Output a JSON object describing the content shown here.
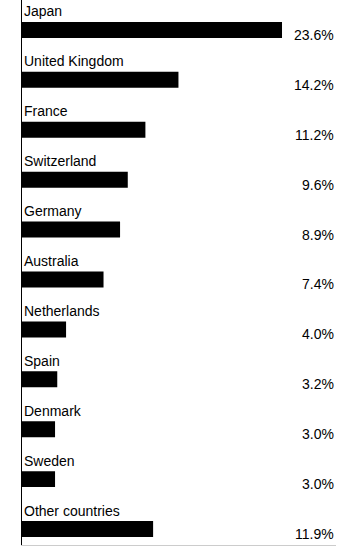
{
  "chart_data": {
    "type": "bar",
    "orientation": "horizontal",
    "categories": [
      "Japan",
      "United Kingdom",
      "France",
      "Switzerland",
      "Germany",
      "Australia",
      "Netherlands",
      "Spain",
      "Denmark",
      "Sweden",
      "Other countries"
    ],
    "values": [
      23.6,
      14.2,
      11.2,
      9.6,
      8.9,
      7.4,
      4.0,
      3.2,
      3.0,
      3.0,
      11.9
    ],
    "value_labels": [
      "23.6%",
      "14.2%",
      "11.2%",
      "9.6%",
      "8.9%",
      "7.4%",
      "4.0%",
      "3.2%",
      "3.0%",
      "3.0%",
      "11.9%"
    ],
    "color": "#000000",
    "xlim": [
      0,
      28.5
    ],
    "tick_labels": false,
    "data_labels": true,
    "grid": false
  }
}
